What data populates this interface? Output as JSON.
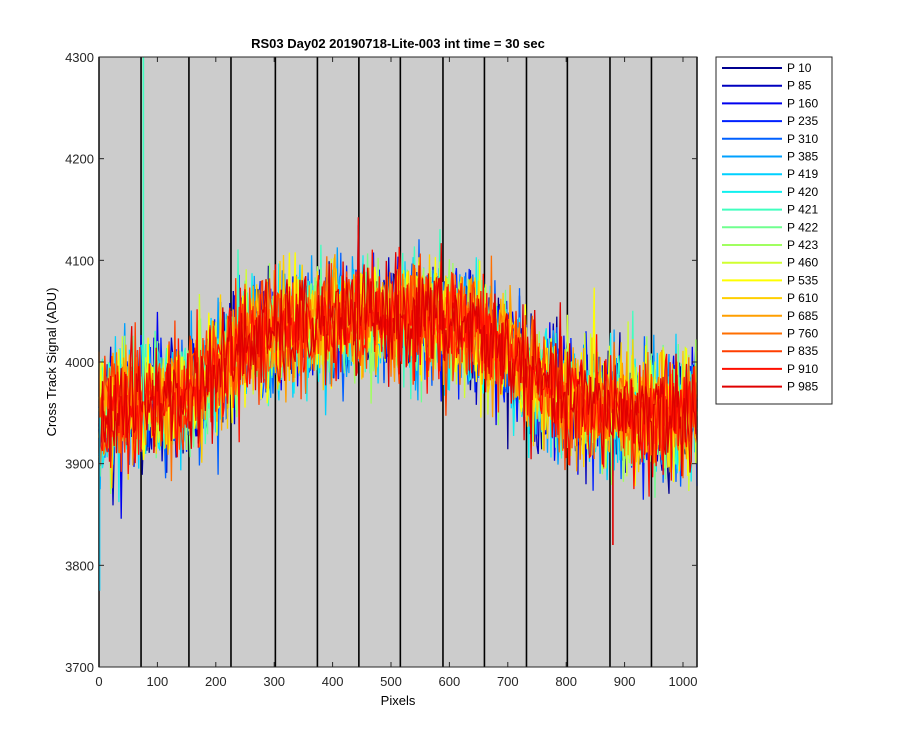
{
  "chart_data": {
    "type": "line",
    "title": "RS03 Day02 20190718-Lite-003 int time = 30 sec",
    "xlabel": "Pixels",
    "ylabel": "Cross Track Signal (ADU)",
    "xlim": [
      0,
      1024
    ],
    "ylim": [
      3700,
      4300
    ],
    "xticks": [
      0,
      100,
      200,
      300,
      400,
      500,
      600,
      700,
      800,
      900,
      1000
    ],
    "yticks": [
      3700,
      3800,
      3900,
      4000,
      4100,
      4200,
      4300
    ],
    "grid": false,
    "background_color": "#cccccc",
    "boundary_lines_x": [
      0,
      72,
      154,
      226,
      302,
      374,
      445,
      516,
      589,
      660,
      732,
      802,
      875,
      946,
      1024
    ],
    "profile": {
      "x": [
        0,
        50,
        150,
        200,
        250,
        350,
        450,
        550,
        650,
        700,
        750,
        800,
        850,
        950,
        1024
      ],
      "y": [
        3945,
        3960,
        3965,
        3990,
        4020,
        4035,
        4045,
        4045,
        4030,
        4010,
        3980,
        3965,
        3955,
        3950,
        3950
      ],
      "noise_amplitude": 50
    },
    "spikes": [
      {
        "x": 76,
        "y": 4300,
        "series": "P 421"
      },
      {
        "x": 1,
        "y": 3775,
        "series": "P 419"
      },
      {
        "x": 880,
        "y": 3820,
        "series": "P 985"
      }
    ],
    "legend_position": "outside-right",
    "series": [
      {
        "name": "P 10",
        "color": "#00008f"
      },
      {
        "name": "P 85",
        "color": "#0000bf"
      },
      {
        "name": "P 160",
        "color": "#0000ef"
      },
      {
        "name": "P 235",
        "color": "#0020ff"
      },
      {
        "name": "P 310",
        "color": "#0060ff"
      },
      {
        "name": "P 385",
        "color": "#00a0ff"
      },
      {
        "name": "P 419",
        "color": "#00d0ff"
      },
      {
        "name": "P 420",
        "color": "#10f0ef"
      },
      {
        "name": "P 421",
        "color": "#40ffbf"
      },
      {
        "name": "P 422",
        "color": "#70ff8f"
      },
      {
        "name": "P 423",
        "color": "#a0ff60"
      },
      {
        "name": "P 460",
        "color": "#d0ff30"
      },
      {
        "name": "P 535",
        "color": "#ffff00"
      },
      {
        "name": "P 610",
        "color": "#ffcf00"
      },
      {
        "name": "P 685",
        "color": "#ff9f00"
      },
      {
        "name": "P 760",
        "color": "#ff6f00"
      },
      {
        "name": "P 835",
        "color": "#ff3f00"
      },
      {
        "name": "P 910",
        "color": "#ff0f00"
      },
      {
        "name": "P 985",
        "color": "#df0000"
      }
    ]
  }
}
